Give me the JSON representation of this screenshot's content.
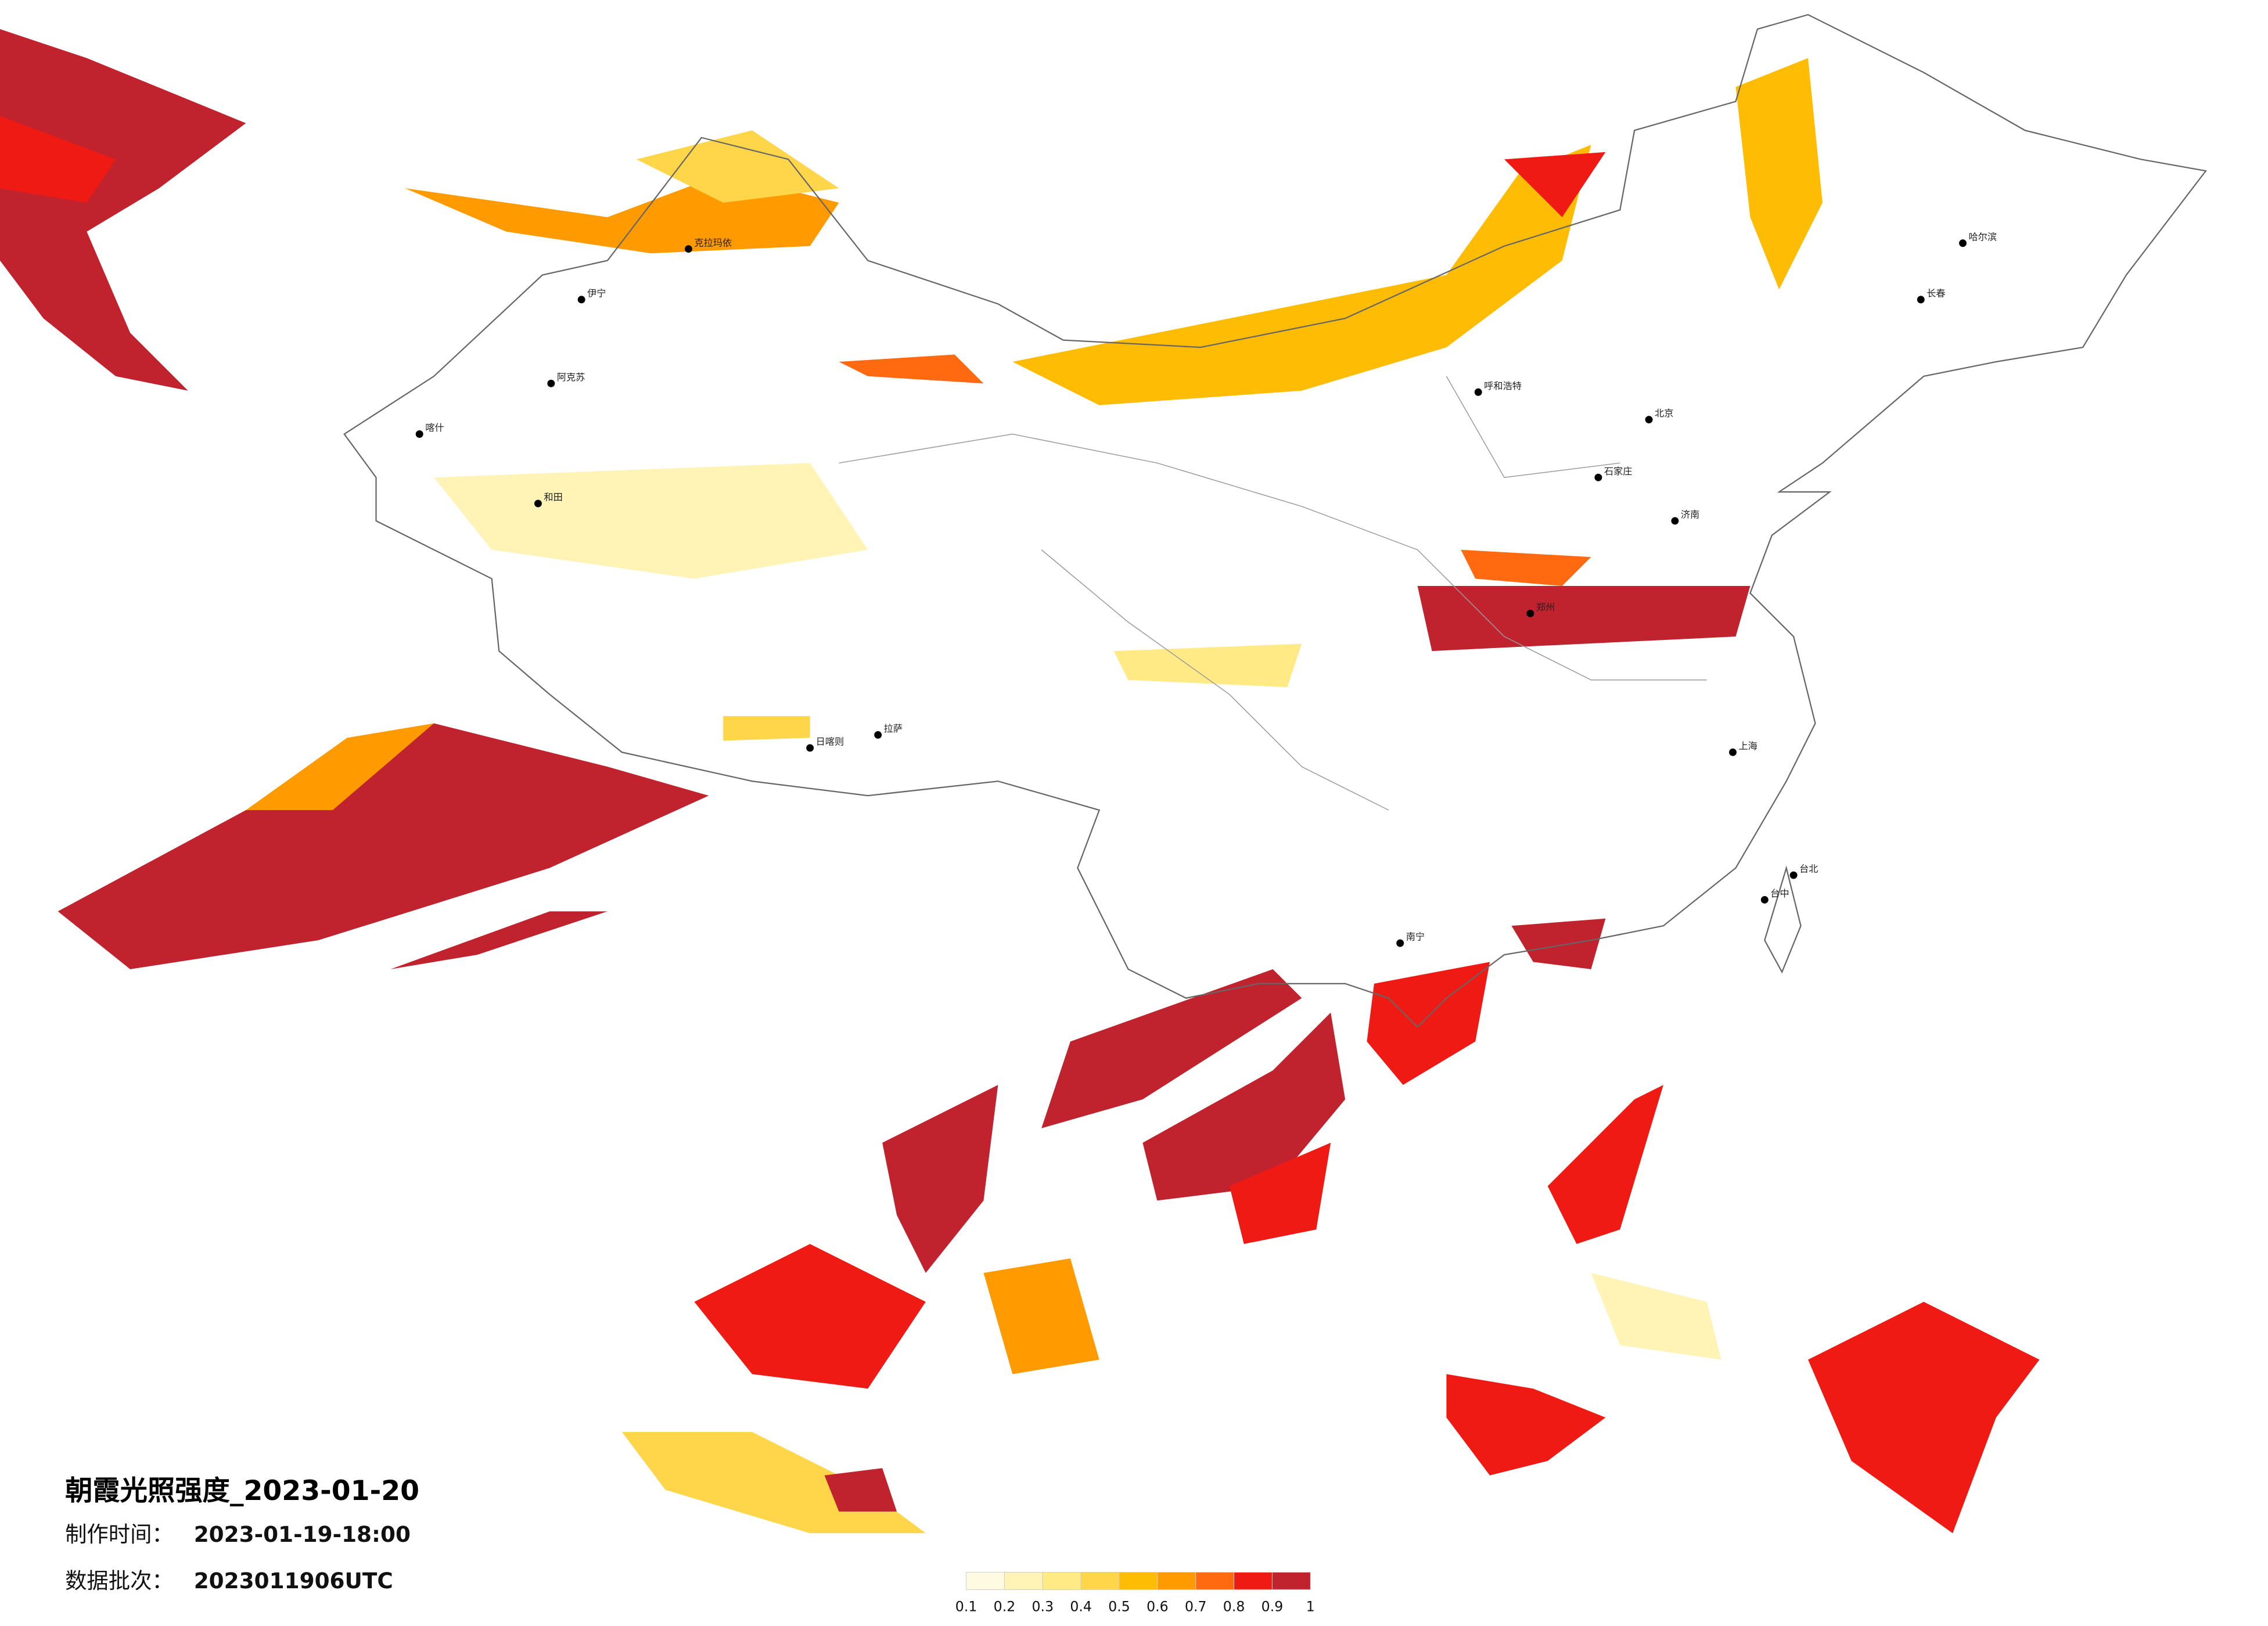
{
  "title": "朝霞光照强度_2023-01-20",
  "made_time": {
    "label": "制作时间：",
    "value": "2023-01-19-18:00"
  },
  "batch": {
    "label": "数据批次：",
    "value": "2023011906UTC"
  },
  "legend": {
    "colors": [
      "#fffbe3",
      "#fff3b5",
      "#ffea85",
      "#ffd64a",
      "#ffbc05",
      "#ff9a00",
      "#ff6a10",
      "#ef1a14",
      "#c0232e"
    ],
    "ticks": [
      0.1,
      0.2,
      0.3,
      0.4,
      0.5,
      0.6,
      0.7,
      0.8,
      0.9,
      1
    ]
  },
  "cities": [
    "哈尔滨",
    "长春",
    "北京",
    "石家庄",
    "呼和浩特",
    "克拉玛依",
    "伊宁",
    "阿克苏",
    "和田",
    "喀什",
    "日喀则",
    "拉萨",
    "南宁",
    "台北",
    "台中",
    "郑州",
    "济南",
    "上海"
  ]
}
